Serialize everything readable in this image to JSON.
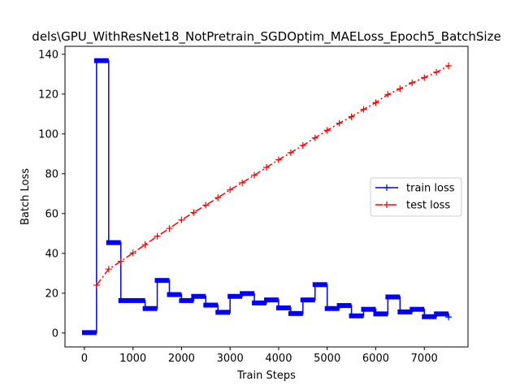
{
  "chart_data": {
    "type": "line",
    "title": "dels\\GPU_WithResNet18_NotPretrain_SGDOptim_MAELoss_Epoch5_BatchSize",
    "xlabel": "Train Steps",
    "ylabel": "Batch Loss",
    "xlim": [
      -400,
      7900
    ],
    "ylim": [
      -7,
      144
    ],
    "xticks": [
      0,
      1000,
      2000,
      3000,
      4000,
      5000,
      6000,
      7000
    ],
    "yticks": [
      0,
      20,
      40,
      60,
      80,
      100,
      120,
      140
    ],
    "grid": false,
    "legend_position": "center-right",
    "series": [
      {
        "name": "train loss",
        "color": "#0000ff",
        "style": "solid",
        "marker": "+",
        "segments": [
          {
            "x0": 0,
            "x1": 250,
            "y": 0.2
          },
          {
            "x0": 250,
            "x1": 500,
            "y": 136.8
          },
          {
            "x0": 500,
            "x1": 750,
            "y": 45.4
          },
          {
            "x0": 750,
            "x1": 1250,
            "y": 16.3
          },
          {
            "x0": 1250,
            "x1": 1500,
            "y": 12.3
          },
          {
            "x0": 1500,
            "x1": 1750,
            "y": 26.4
          },
          {
            "x0": 1750,
            "x1": 2000,
            "y": 19.3
          },
          {
            "x0": 2000,
            "x1": 2250,
            "y": 16.3
          },
          {
            "x0": 2250,
            "x1": 2500,
            "y": 18.4
          },
          {
            "x0": 2500,
            "x1": 2750,
            "y": 14.0
          },
          {
            "x0": 2750,
            "x1": 3000,
            "y": 10.4
          },
          {
            "x0": 3000,
            "x1": 3250,
            "y": 18.4
          },
          {
            "x0": 3250,
            "x1": 3500,
            "y": 19.8
          },
          {
            "x0": 3500,
            "x1": 3750,
            "y": 15.1
          },
          {
            "x0": 3750,
            "x1": 4000,
            "y": 16.6
          },
          {
            "x0": 4000,
            "x1": 4250,
            "y": 12.6
          },
          {
            "x0": 4250,
            "x1": 4500,
            "y": 9.8
          },
          {
            "x0": 4500,
            "x1": 4750,
            "y": 16.6
          },
          {
            "x0": 4750,
            "x1": 5000,
            "y": 24.3
          },
          {
            "x0": 5000,
            "x1": 5250,
            "y": 12.3
          },
          {
            "x0": 5250,
            "x1": 5500,
            "y": 13.8
          },
          {
            "x0": 5500,
            "x1": 5750,
            "y": 8.6
          },
          {
            "x0": 5750,
            "x1": 6000,
            "y": 11.9
          },
          {
            "x0": 6000,
            "x1": 6250,
            "y": 9.6
          },
          {
            "x0": 6250,
            "x1": 6500,
            "y": 18.1
          },
          {
            "x0": 6500,
            "x1": 6750,
            "y": 10.6
          },
          {
            "x0": 6750,
            "x1": 7000,
            "y": 11.9
          },
          {
            "x0": 7000,
            "x1": 7250,
            "y": 8.2
          },
          {
            "x0": 7250,
            "x1": 7500,
            "y": 9.6
          }
        ],
        "end_point": {
          "x": 7500,
          "y": 8.0
        }
      },
      {
        "name": "test loss",
        "color": "#ff0000",
        "style": "dashdot",
        "marker": "+",
        "x": [
          250,
          500,
          750,
          1000,
          1250,
          1500,
          1750,
          2000,
          2250,
          2500,
          2750,
          3000,
          3250,
          3500,
          3750,
          4000,
          4250,
          4500,
          4750,
          5000,
          5250,
          5500,
          5750,
          6000,
          6250,
          6500,
          6750,
          7000,
          7250,
          7500
        ],
        "y": [
          24.0,
          32.1,
          36.0,
          40.2,
          44.4,
          48.6,
          52.5,
          56.8,
          60.5,
          64.2,
          68.0,
          71.9,
          75.5,
          79.2,
          83.2,
          87.0,
          90.6,
          94.2,
          98.0,
          101.8,
          105.4,
          108.6,
          112.3,
          115.7,
          119.8,
          122.7,
          125.7,
          128.3,
          131.0,
          134.2
        ]
      }
    ]
  }
}
